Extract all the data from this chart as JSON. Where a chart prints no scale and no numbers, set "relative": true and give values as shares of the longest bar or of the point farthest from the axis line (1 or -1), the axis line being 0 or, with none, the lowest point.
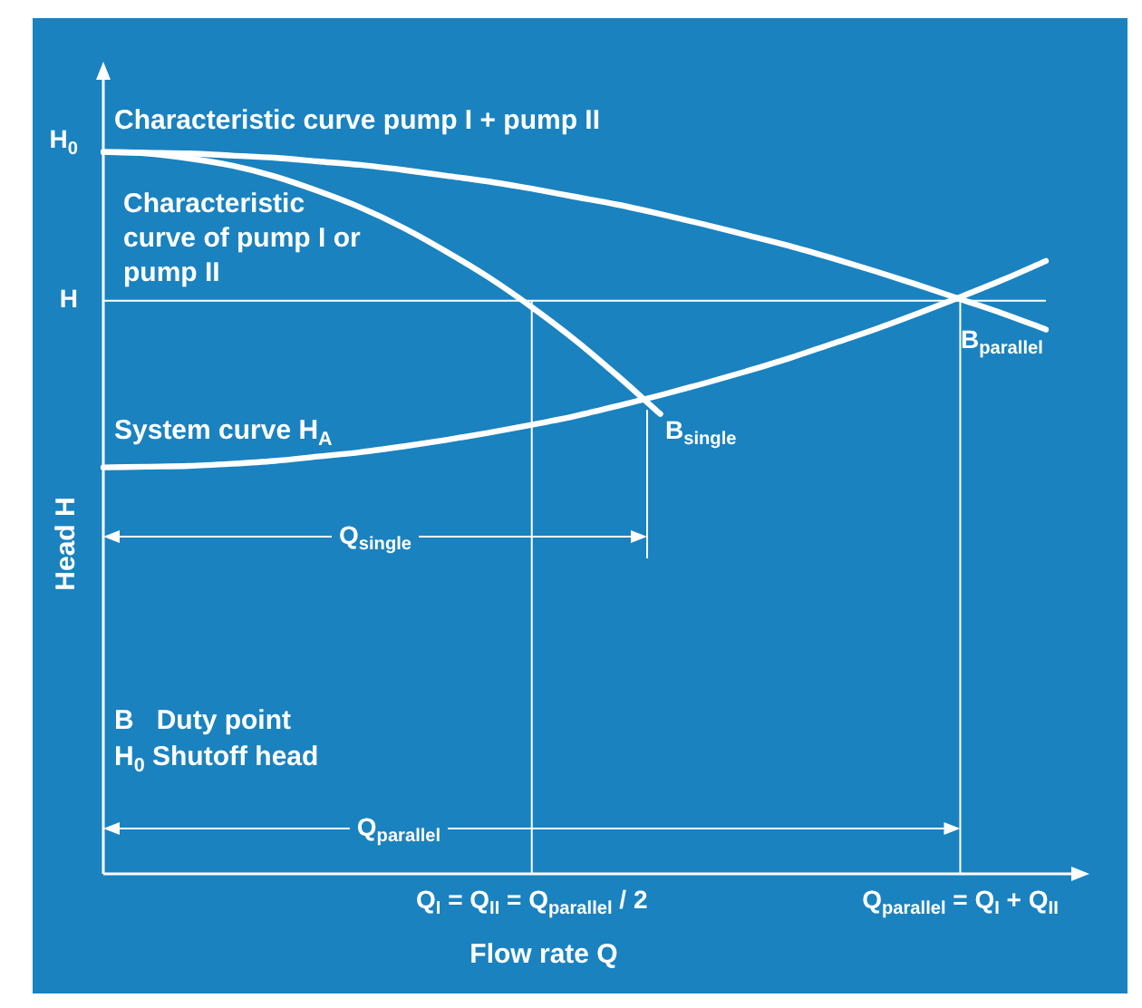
{
  "chart_data": {
    "type": "line",
    "relative": true,
    "xlabel": "Flow rate Q",
    "ylabel": "Head H",
    "categories": [
      null,
      null,
      null,
      null,
      null,
      null,
      null,
      null,
      null,
      null,
      "Q$_{I}$ = Q$_{II}$ = Q$_{parallel}$ / 2",
      null,
      null,
      null,
      null,
      null,
      null,
      null,
      null,
      null,
      "Q$_{parallel}$ = Q$_{I}$ + Q$_{II}$",
      null,
      null
    ],
    "series": [
      {
        "name": "Characteristic curve pump I + pump II",
        "color": "#ffffff",
        "values": [
          1,
          0.999,
          0.998,
          0.995,
          0.992,
          0.987,
          0.982,
          0.975,
          0.967,
          0.959,
          0.949,
          0.938,
          0.927,
          0.914,
          0.9,
          0.885,
          0.87,
          0.853,
          0.835,
          0.816,
          0.796,
          0.776,
          0.754
        ]
      },
      {
        "name": "Characteristic curve of pump I or pump II",
        "color": "#ffffff",
        "values": [
          1,
          0.998,
          0.991,
          0.981,
          0.966,
          0.946,
          0.923,
          0.895,
          0.862,
          0.826,
          0.785,
          0.74,
          0.69,
          0.637,
          null,
          null,
          null,
          null,
          null,
          null,
          null,
          null,
          null
        ]
      },
      {
        "name": "System curve H$_{A}$",
        "color": "#ffffff",
        "values": [
          0.563,
          0.564,
          0.565,
          0.568,
          0.572,
          0.578,
          0.584,
          0.592,
          0.601,
          0.611,
          0.622,
          0.634,
          0.648,
          0.663,
          0.679,
          0.696,
          0.714,
          0.734,
          0.754,
          0.776,
          0.799,
          0.823,
          0.849
        ]
      }
    ],
    "ref_lines": [
      {
        "axis": "y",
        "value": 0.794,
        "label": "H",
        "color": "#ffffff"
      },
      {
        "axis": "x",
        "value": "Q$_{I}$ = Q$_{II}$ = Q$_{parallel}$ / 2",
        "color": "#ffffff"
      },
      {
        "axis": "x",
        "value": "Q$_{parallel}$ = Q$_{I}$ + Q$_{II}$",
        "color": "#ffffff"
      }
    ],
    "annotations": [
      "H$_{0}$",
      "B$_{single}$",
      "B$_{parallel}$",
      "Q$_{single}$",
      "Q$_{parallel}$",
      "B   Duty point",
      "H$_{0}$ Shutoff head"
    ]
  }
}
